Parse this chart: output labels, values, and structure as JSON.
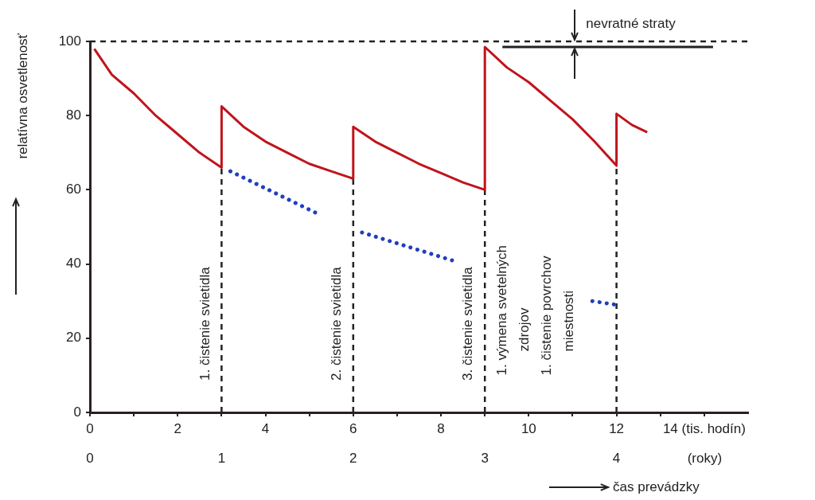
{
  "chart_data": {
    "type": "line",
    "xlabel": "čas prevádzky",
    "ylabel": "relatívna osvetlenosť",
    "grid": false,
    "legend": false,
    "marker": "none",
    "xlim": [
      0,
      15
    ],
    "xticks": [
      0,
      {
        "value": 1,
        "label": null
      },
      2,
      {
        "value": 3,
        "label": null
      },
      4,
      {
        "value": 5,
        "label": null
      },
      6,
      {
        "value": 7,
        "label": null
      },
      8,
      {
        "value": 9,
        "label": null
      },
      10,
      {
        "value": 11,
        "label": null
      },
      12,
      {
        "value": 13,
        "label": null
      },
      {
        "value": 14,
        "label": "14 (tis. hodín)"
      }
    ],
    "x2lim": [
      0,
      5
    ],
    "x2ticks": [
      0,
      1,
      2,
      3,
      4,
      {
        "value": 4.67,
        "label": "(roky)"
      }
    ],
    "ylim": [
      0,
      100
    ],
    "yticks": [
      0,
      20,
      40,
      60,
      80,
      100
    ],
    "series": [
      {
        "color": "#c0141c",
        "line_style": "solid",
        "x": [
          0.1,
          0.5,
          1,
          1.5,
          2,
          2.5,
          3,
          3,
          3.5,
          4,
          4.5,
          5,
          5.5,
          6,
          6,
          6.5,
          7,
          7.5,
          8,
          8.5,
          9,
          9,
          9.5,
          10,
          10.5,
          11,
          11.5,
          12,
          12,
          12.35,
          12.7
        ],
        "values": [
          98,
          91,
          86,
          80,
          75,
          70,
          66,
          82.5,
          77,
          73,
          70,
          67,
          65,
          63,
          77,
          73,
          70,
          67,
          64.5,
          62,
          60,
          98.5,
          93,
          89,
          84,
          79,
          73,
          66.5,
          80.5,
          77.5,
          75.5
        ]
      },
      {
        "color": "#1f3fbf",
        "line_style": "dotted",
        "x": [
          3.2,
          5.2,
          5.7,
          6.2,
          8.25,
          10,
          11.45,
          12
        ],
        "values": [
          65,
          53.5,
          null,
          48.5,
          41,
          null,
          30,
          29
        ]
      },
      {
        "color": "#222222",
        "line_style": "solid",
        "x": [
          9.4,
          14.2
        ],
        "values": [
          98.5,
          98.5
        ]
      }
    ],
    "ref_lines": [
      {
        "axis": "y",
        "value": 100,
        "color": "#222222",
        "line_style": "dashed"
      },
      {
        "axis": "x",
        "value": 3,
        "label": "1. čistenie svietidla",
        "color": "#222222",
        "line_style": "dashed"
      },
      {
        "axis": "x",
        "value": 6,
        "label": "2. čistenie svietidla",
        "color": "#222222",
        "line_style": "dashed"
      },
      {
        "axis": "x",
        "value": 9,
        "label": "3. čistenie svietidla",
        "color": "#222222",
        "line_style": "dashed"
      },
      {
        "axis": "x",
        "value": 12,
        "color": "#222222",
        "line_style": "dashed"
      }
    ],
    "annotations": [
      {
        "text": "nevratné straty",
        "x": 11.05,
        "y": 100
      },
      {
        "text": "1. výmena svetelných\nzdrojov\n1. čistenie povrchov\nmiestnosti",
        "x": 9,
        "y": 10
      }
    ]
  }
}
